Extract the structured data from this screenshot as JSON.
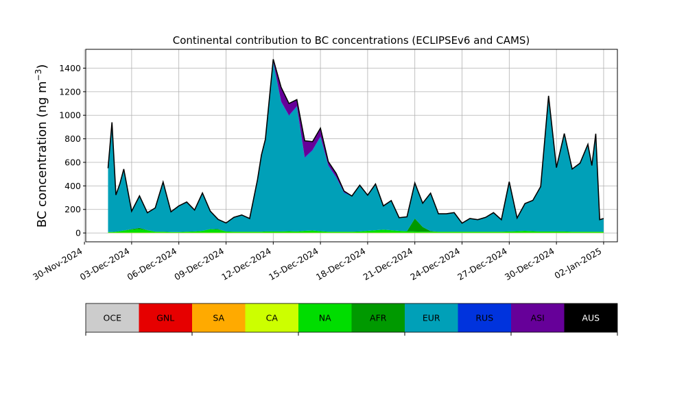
{
  "chart_data": {
    "type": "area",
    "title": "Continental contribution to BC concentrations (ECLIPSEv6 and CAMS)",
    "ylabel_main": "BC concentration (ng m",
    "ylabel_sup": "−3",
    "ylabel_tail": ")",
    "xlabel": "",
    "ylim": [
      -75,
      1560
    ],
    "xlim": [
      "2024-11-30T02:00",
      "2025-01-02T21:00"
    ],
    "grid": true,
    "y_ticks": [
      0,
      200,
      400,
      600,
      800,
      1000,
      1200,
      1400
    ],
    "y_tick_labels": [
      "0",
      "200",
      "400",
      "600",
      "800",
      "1000",
      "1200",
      "1400"
    ],
    "x_ticks": [
      "2024-11-30",
      "2024-12-03",
      "2024-12-06",
      "2024-12-09",
      "2024-12-12",
      "2024-12-15",
      "2024-12-18",
      "2024-12-21",
      "2024-12-24",
      "2024-12-27",
      "2024-12-30",
      "2025-01-02"
    ],
    "x_tick_labels": [
      "30-Nov-2024",
      "03-Dec-2024",
      "06-Dec-2024",
      "09-Dec-2024",
      "12-Dec-2024",
      "15-Dec-2024",
      "18-Dec-2024",
      "21-Dec-2024",
      "24-Dec-2024",
      "27-Dec-2024",
      "30-Dec-2024",
      "02-Jan-2025"
    ],
    "x": [
      "2024-12-01T12:00",
      "2024-12-01T18:00",
      "2024-12-02T00:00",
      "2024-12-02T06:00",
      "2024-12-02T12:00",
      "2024-12-03T00:00",
      "2024-12-03T12:00",
      "2024-12-04T00:00",
      "2024-12-04T12:00",
      "2024-12-05T00:00",
      "2024-12-05T12:00",
      "2024-12-06T00:00",
      "2024-12-06T12:00",
      "2024-12-07T00:00",
      "2024-12-07T12:00",
      "2024-12-08T00:00",
      "2024-12-08T12:00",
      "2024-12-09T00:00",
      "2024-12-09T12:00",
      "2024-12-10T00:00",
      "2024-12-10T12:00",
      "2024-12-11T00:00",
      "2024-12-11T06:00",
      "2024-12-11T12:00",
      "2024-12-12T00:00",
      "2024-12-12T12:00",
      "2024-12-13T00:00",
      "2024-12-13T12:00",
      "2024-12-14T00:00",
      "2024-12-14T12:00",
      "2024-12-15T00:00",
      "2024-12-15T12:00",
      "2024-12-16T00:00",
      "2024-12-16T12:00",
      "2024-12-17T00:00",
      "2024-12-17T12:00",
      "2024-12-18T00:00",
      "2024-12-18T12:00",
      "2024-12-19T00:00",
      "2024-12-19T12:00",
      "2024-12-20T00:00",
      "2024-12-20T12:00",
      "2024-12-21T00:00",
      "2024-12-21T12:00",
      "2024-12-22T00:00",
      "2024-12-22T12:00",
      "2024-12-23T00:00",
      "2024-12-23T12:00",
      "2024-12-24T00:00",
      "2024-12-24T12:00",
      "2024-12-25T00:00",
      "2024-12-25T12:00",
      "2024-12-26T00:00",
      "2024-12-26T12:00",
      "2024-12-27T00:00",
      "2024-12-27T12:00",
      "2024-12-28T00:00",
      "2024-12-28T12:00",
      "2024-12-29T00:00",
      "2024-12-29T12:00",
      "2024-12-30T00:00",
      "2024-12-30T12:00",
      "2024-12-31T00:00",
      "2024-12-31T12:00",
      "2025-01-01T00:00",
      "2025-01-01T06:00",
      "2025-01-01T12:00",
      "2025-01-01T18:00",
      "2025-01-02T00:00"
    ],
    "series": [
      {
        "name": "OCE",
        "color": "#cccccc",
        "values": [
          0,
          0,
          0,
          0,
          0,
          0,
          0,
          0,
          0,
          0,
          0,
          0,
          0,
          0,
          0,
          0,
          0,
          0,
          0,
          0,
          0,
          0,
          0,
          0,
          0,
          0,
          0,
          0,
          0,
          0,
          0,
          0,
          0,
          0,
          0,
          0,
          0,
          0,
          0,
          0,
          0,
          0,
          0,
          0,
          0,
          0,
          0,
          0,
          0,
          0,
          0,
          0,
          0,
          0,
          0,
          0,
          0,
          0,
          0,
          0,
          0,
          0,
          0,
          0,
          0,
          0,
          0,
          0,
          0
        ]
      },
      {
        "name": "GNL",
        "color": "#e60000",
        "values": [
          0,
          0,
          0,
          0,
          0,
          0,
          0,
          0,
          0,
          0,
          0,
          0,
          0,
          0,
          0,
          0,
          0,
          0,
          0,
          0,
          0,
          0,
          0,
          0,
          0,
          0,
          0,
          0,
          0,
          0,
          0,
          0,
          0,
          0,
          0,
          0,
          0,
          0,
          0,
          0,
          0,
          0,
          0,
          0,
          0,
          0,
          0,
          0,
          0,
          0,
          0,
          0,
          0,
          0,
          0,
          0,
          0,
          0,
          0,
          0,
          0,
          0,
          0,
          0,
          0,
          0,
          0,
          0,
          0
        ]
      },
      {
        "name": "SA",
        "color": "#ffaa00",
        "values": [
          0,
          0,
          0,
          0,
          0,
          0,
          0,
          0,
          0,
          0,
          0,
          0,
          0,
          0,
          0,
          0,
          0,
          0,
          0,
          0,
          0,
          0,
          0,
          0,
          0,
          0,
          0,
          0,
          0,
          0,
          0,
          0,
          0,
          0,
          0,
          0,
          0,
          0,
          0,
          0,
          0,
          0,
          0,
          0,
          0,
          0,
          0,
          0,
          0,
          0,
          0,
          0,
          0,
          0,
          0,
          0,
          0,
          0,
          0,
          0,
          0,
          0,
          0,
          0,
          0,
          0,
          0,
          0,
          0
        ]
      },
      {
        "name": "CA",
        "color": "#ccff00",
        "values": [
          3,
          3,
          3,
          3,
          3,
          3,
          3,
          3,
          3,
          3,
          3,
          3,
          3,
          3,
          3,
          3,
          3,
          3,
          3,
          3,
          3,
          3,
          3,
          3,
          3,
          3,
          3,
          3,
          3,
          3,
          3,
          3,
          3,
          3,
          3,
          3,
          3,
          3,
          3,
          3,
          3,
          3,
          3,
          3,
          3,
          3,
          3,
          3,
          3,
          3,
          3,
          3,
          3,
          3,
          3,
          3,
          3,
          3,
          3,
          3,
          3,
          3,
          3,
          3,
          3,
          3,
          3,
          3,
          3
        ]
      },
      {
        "name": "NA",
        "color": "#00dd00",
        "values": [
          5,
          5,
          8,
          12,
          18,
          25,
          30,
          20,
          8,
          8,
          5,
          5,
          8,
          10,
          15,
          30,
          25,
          10,
          8,
          8,
          8,
          8,
          8,
          10,
          10,
          10,
          12,
          10,
          15,
          18,
          12,
          8,
          8,
          8,
          8,
          10,
          15,
          20,
          25,
          20,
          15,
          12,
          10,
          8,
          8,
          8,
          8,
          8,
          8,
          8,
          8,
          8,
          8,
          8,
          10,
          12,
          15,
          12,
          10,
          10,
          10,
          10,
          8,
          8,
          8,
          8,
          8,
          8,
          8
        ]
      },
      {
        "name": "AFR",
        "color": "#009900",
        "values": [
          0,
          0,
          0,
          0,
          0,
          5,
          10,
          2,
          0,
          0,
          0,
          0,
          0,
          0,
          0,
          0,
          5,
          0,
          0,
          0,
          0,
          0,
          0,
          0,
          0,
          0,
          0,
          0,
          0,
          0,
          0,
          0,
          0,
          0,
          0,
          0,
          0,
          0,
          0,
          0,
          0,
          0,
          110,
          40,
          5,
          0,
          0,
          0,
          0,
          0,
          0,
          0,
          0,
          0,
          0,
          0,
          0,
          0,
          0,
          0,
          0,
          0,
          0,
          0,
          0,
          0,
          0,
          0,
          0
        ]
      },
      {
        "name": "EUR",
        "color": "#00a0b8",
        "values": [
          540,
          930,
          310,
          400,
          520,
          150,
          270,
          145,
          200,
          420,
          170,
          220,
          250,
          180,
          320,
          150,
          80,
          70,
          120,
          140,
          110,
          440,
          650,
          780,
          1440,
          1100,
          980,
          1060,
          620,
          680,
          800,
          560,
          460,
          330,
          300,
          390,
          300,
          390,
          200,
          250,
          110,
          120,
          300,
          200,
          320,
          150,
          150,
          160,
          70,
          110,
          100,
          120,
          160,
          100,
          420,
          110,
          230,
          260,
          380,
          1150,
          540,
          830,
          530,
          580,
          740,
          560,
          830,
          100,
          110
        ]
      },
      {
        "name": "RUS",
        "color": "#0033dd",
        "values": [
          2,
          2,
          2,
          2,
          2,
          2,
          2,
          2,
          2,
          2,
          2,
          2,
          2,
          2,
          2,
          2,
          2,
          2,
          2,
          2,
          2,
          2,
          2,
          2,
          3,
          5,
          5,
          5,
          5,
          5,
          5,
          5,
          5,
          5,
          3,
          3,
          3,
          3,
          2,
          2,
          2,
          2,
          2,
          2,
          2,
          2,
          2,
          2,
          2,
          2,
          2,
          2,
          2,
          2,
          2,
          2,
          2,
          2,
          2,
          2,
          2,
          2,
          2,
          2,
          2,
          2,
          2,
          2,
          2
        ]
      },
      {
        "name": "ASI",
        "color": "#660099",
        "values": [
          0,
          0,
          0,
          0,
          0,
          0,
          0,
          0,
          0,
          0,
          0,
          0,
          0,
          0,
          0,
          0,
          0,
          0,
          0,
          0,
          0,
          0,
          0,
          0,
          20,
          120,
          100,
          55,
          140,
          70,
          70,
          30,
          30,
          10,
          0,
          0,
          0,
          0,
          0,
          0,
          0,
          0,
          0,
          0,
          0,
          0,
          0,
          0,
          0,
          0,
          0,
          0,
          0,
          0,
          0,
          0,
          0,
          0,
          0,
          0,
          0,
          0,
          0,
          0,
          0,
          0,
          0,
          0,
          0
        ]
      },
      {
        "name": "AUS",
        "color": "#000000",
        "values": [
          0,
          0,
          0,
          0,
          0,
          0,
          0,
          0,
          0,
          0,
          0,
          0,
          0,
          0,
          0,
          0,
          0,
          0,
          0,
          0,
          0,
          0,
          0,
          0,
          0,
          0,
          0,
          0,
          0,
          0,
          0,
          0,
          0,
          0,
          0,
          0,
          0,
          0,
          0,
          0,
          0,
          0,
          0,
          0,
          0,
          0,
          0,
          0,
          0,
          0,
          0,
          0,
          0,
          0,
          0,
          0,
          0,
          0,
          0,
          0,
          0,
          0,
          0,
          0,
          0,
          0,
          0,
          0,
          0
        ]
      }
    ],
    "legend": {
      "placement": "bottom",
      "items": [
        {
          "label": "OCE",
          "color": "#cccccc"
        },
        {
          "label": "GNL",
          "color": "#e60000"
        },
        {
          "label": "SA",
          "color": "#ffaa00"
        },
        {
          "label": "CA",
          "color": "#ccff00"
        },
        {
          "label": "NA",
          "color": "#00dd00"
        },
        {
          "label": "AFR",
          "color": "#009900"
        },
        {
          "label": "EUR",
          "color": "#00a0b8"
        },
        {
          "label": "RUS",
          "color": "#0033dd"
        },
        {
          "label": "ASI",
          "color": "#660099"
        },
        {
          "label": "AUS",
          "color": "#000000"
        }
      ]
    }
  }
}
